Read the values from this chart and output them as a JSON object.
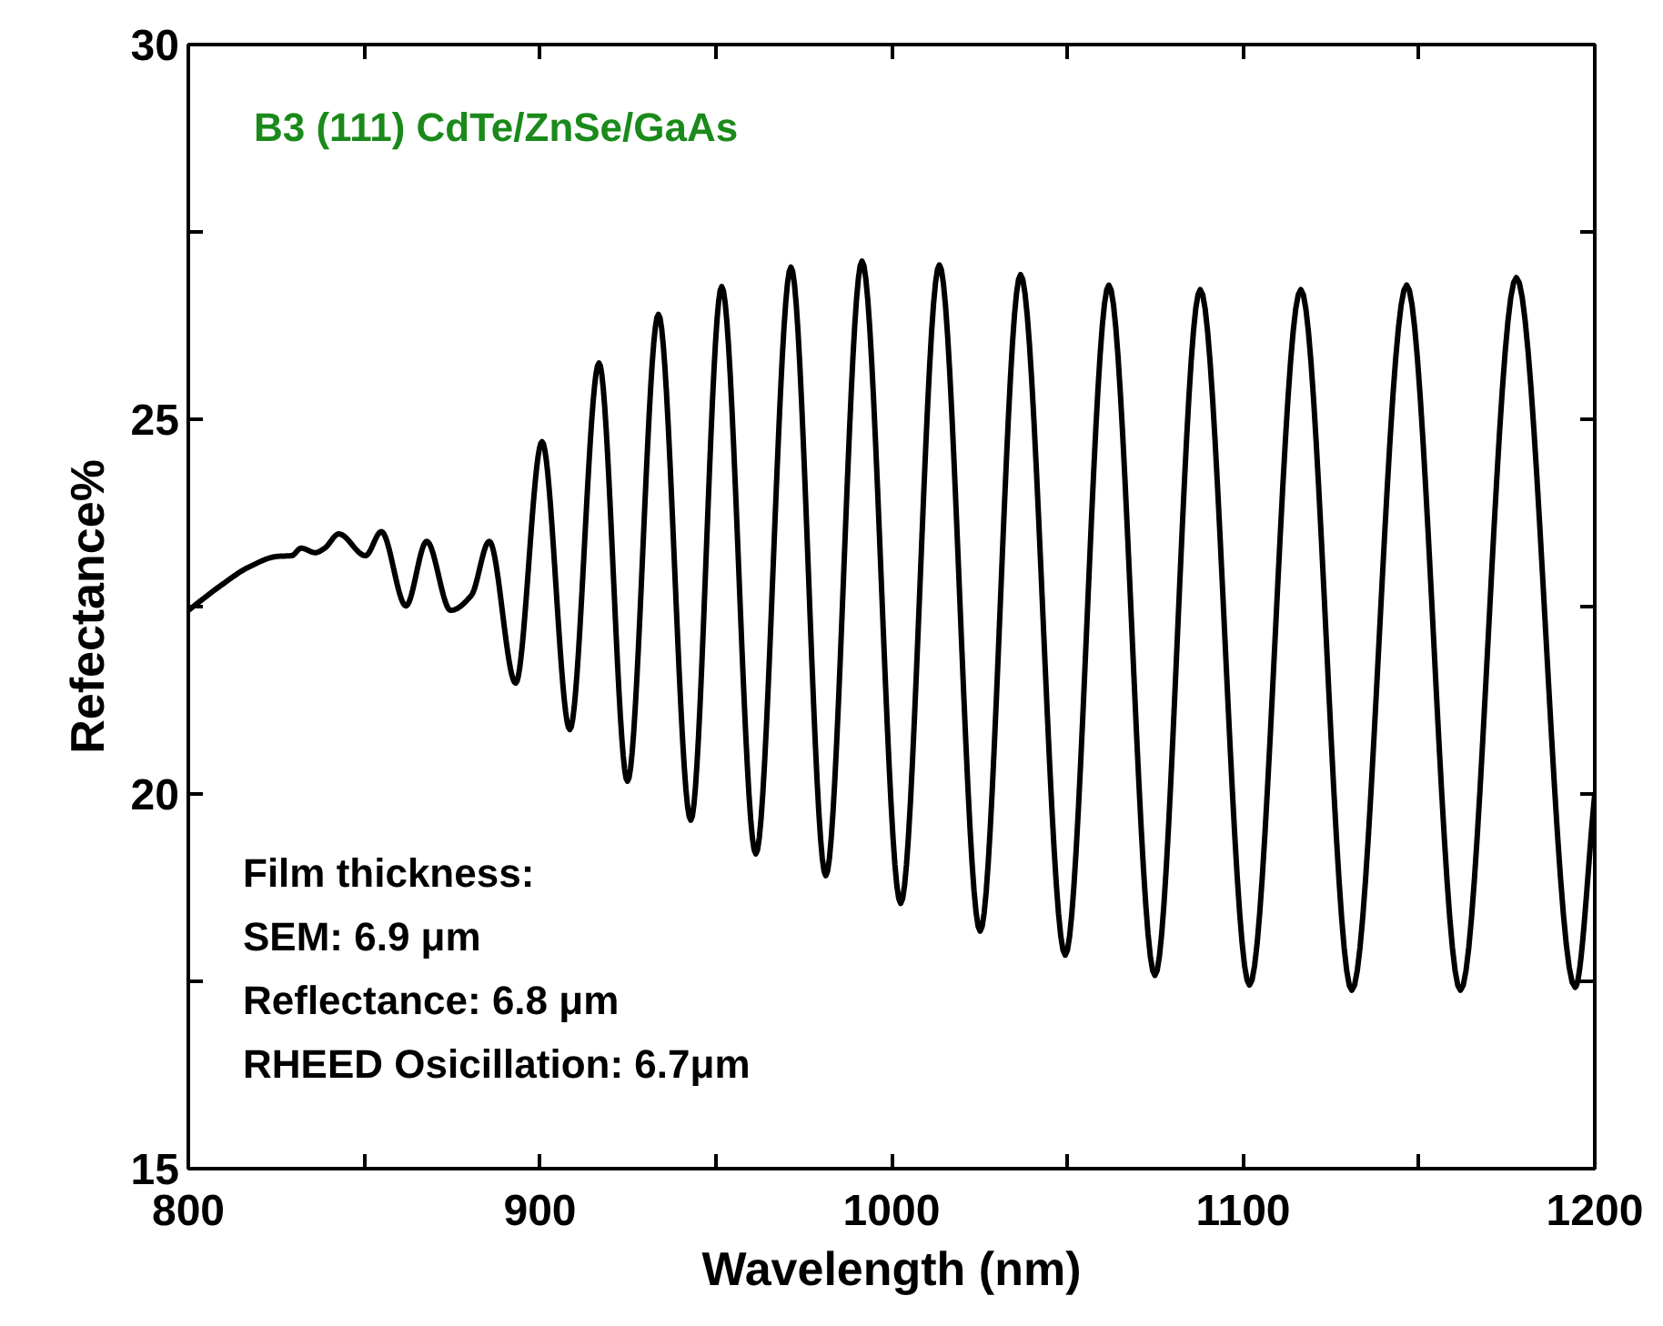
{
  "chart_data": {
    "type": "line",
    "xlabel": "Wavelength (nm)",
    "ylabel": "Refectance%",
    "title": "B3 (111) CdTe/ZnSe/GaAs",
    "annotations": [
      "Film thickness:",
      "SEM:  6.9 μm",
      "Reflectance:  6.8 μm",
      "RHEED Osicillation: 6.7μm"
    ],
    "xlim": [
      800,
      1200
    ],
    "ylim": [
      15,
      30
    ],
    "xticks": [
      800,
      {
        "value": 850,
        "label": null
      },
      900,
      {
        "value": 950,
        "label": null
      },
      1000,
      {
        "value": 1050,
        "label": null
      },
      1100,
      {
        "value": 1150,
        "label": null
      },
      1200
    ],
    "yticks": [
      15,
      {
        "value": 17.5,
        "label": null
      },
      20,
      {
        "value": 22.5,
        "label": null
      },
      25,
      {
        "value": 27.5,
        "label": null
      },
      30
    ],
    "grid": false,
    "marker": "none",
    "line_style": "solid",
    "series": [
      {
        "color": "#000000",
        "x": [
          800,
          809.2,
          817.3,
          825.3,
          829.4,
          832.1,
          836.1,
          838.8,
          842.8,
          850.4,
          854.9,
          861.9,
          867.8,
          874.6,
          880.5,
          885.6,
          893.1,
          900.6,
          908.5,
          916.8,
          924.9,
          933.7,
          942.9,
          951.7,
          961.4,
          971.4,
          981.3,
          991.6,
          1002.6,
          1013.6,
          1025.2,
          1036.7,
          1049.4,
          1061.8,
          1074.9,
          1087.8,
          1101.8,
          1116.4,
          1130.9,
          1146.5,
          1161.8,
          1177.7,
          1194.4,
          1200
        ],
        "values": [
          22.45,
          22.78,
          23.03,
          23.17,
          23.18,
          23.28,
          23.22,
          23.28,
          23.47,
          23.18,
          23.5,
          22.51,
          23.37,
          22.45,
          22.65,
          23.37,
          21.48,
          24.7,
          20.86,
          25.75,
          20.17,
          26.4,
          19.65,
          26.77,
          19.2,
          27.03,
          18.91,
          27.11,
          18.54,
          27.06,
          18.17,
          26.93,
          17.85,
          26.79,
          17.58,
          26.73,
          17.45,
          26.73,
          17.38,
          26.79,
          17.38,
          26.89,
          17.42,
          20.0
        ]
      }
    ]
  }
}
